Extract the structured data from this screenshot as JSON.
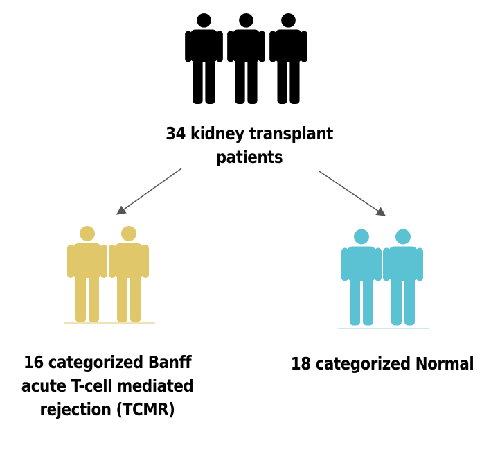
{
  "root": {
    "label_lines": [
      "34 kidney transplant",
      "patients"
    ],
    "figure_count": 3,
    "color": "#000000"
  },
  "left_group": {
    "label_lines": [
      "16 categorized Banff",
      "acute T-cell mediated",
      "rejection (TCMR)"
    ],
    "figure_count": 2,
    "color": "#E0C86A"
  },
  "right_group": {
    "label_lines": [
      "18 categorized Normal"
    ],
    "figure_count": 2,
    "color": "#5BC2D4"
  },
  "arrow_color": "#555555"
}
